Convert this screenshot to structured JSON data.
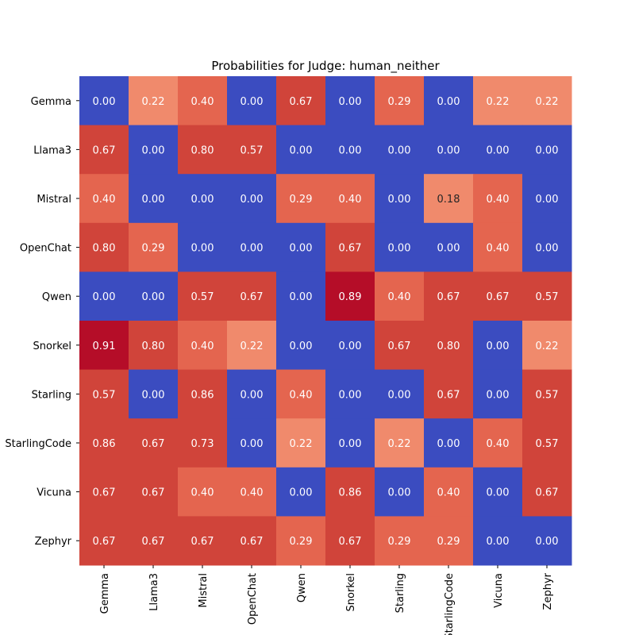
{
  "chart_data": {
    "type": "heatmap",
    "title": "Probabilities for Judge: human_neither",
    "xlabel": "",
    "ylabel": "",
    "rows": [
      "Gemma",
      "Llama3",
      "Mistral",
      "OpenChat",
      "Qwen",
      "Snorkel",
      "Starling",
      "StarlingCode",
      "Vicuna",
      "Zephyr"
    ],
    "columns": [
      "Gemma",
      "Llama3",
      "Mistral",
      "OpenChat",
      "Qwen",
      "Snorkel",
      "Starling",
      "StarlingCode",
      "Vicuna",
      "Zephyr"
    ],
    "values": [
      [
        0.0,
        0.22,
        0.4,
        0.0,
        0.67,
        0.0,
        0.29,
        0.0,
        0.22,
        0.22
      ],
      [
        0.67,
        0.0,
        0.8,
        0.57,
        0.0,
        0.0,
        0.0,
        0.0,
        0.0,
        0.0
      ],
      [
        0.4,
        0.0,
        0.0,
        0.0,
        0.29,
        0.4,
        0.0,
        0.18,
        0.4,
        0.0
      ],
      [
        0.8,
        0.29,
        0.0,
        0.0,
        0.0,
        0.67,
        0.0,
        0.0,
        0.4,
        0.0
      ],
      [
        0.0,
        0.0,
        0.57,
        0.67,
        0.0,
        0.89,
        0.4,
        0.67,
        0.67,
        0.57
      ],
      [
        0.91,
        0.8,
        0.4,
        0.22,
        0.0,
        0.0,
        0.67,
        0.8,
        0.0,
        0.22
      ],
      [
        0.57,
        0.0,
        0.86,
        0.0,
        0.4,
        0.0,
        0.0,
        0.67,
        0.0,
        0.57
      ],
      [
        0.86,
        0.67,
        0.73,
        0.0,
        0.22,
        0.0,
        0.22,
        0.0,
        0.4,
        0.57
      ],
      [
        0.67,
        0.67,
        0.4,
        0.4,
        0.0,
        0.86,
        0.0,
        0.4,
        0.0,
        0.67
      ],
      [
        0.67,
        0.67,
        0.67,
        0.67,
        0.29,
        0.67,
        0.29,
        0.29,
        0.0,
        0.0
      ]
    ],
    "value_format": "2 decimals",
    "colormap": "coolwarm",
    "colorbar": false,
    "grid": false,
    "x_tick_rotation": "vertical"
  },
  "colors": {
    "zero": "#3b4cc0",
    "low": "#f08a6c",
    "mid": "#e4654f",
    "high": "#d0443a",
    "max": "#b50d28",
    "label_dark_text": "#262626",
    "label_light_text": "#ffffff"
  }
}
